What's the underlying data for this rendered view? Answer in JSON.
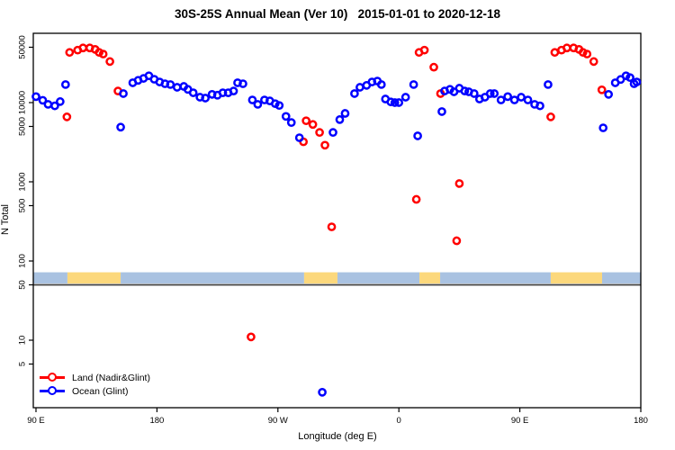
{
  "title": "30S-25S Annual Mean (Ver 10)   2015-01-01 to 2020-12-18",
  "x_axis": {
    "label": "Longitude (deg E)",
    "ticks": [
      {
        "lon": 90,
        "label": "90 E"
      },
      {
        "lon": 180,
        "label": "180"
      },
      {
        "lon": 270,
        "label": "90 W"
      },
      {
        "lon": 360,
        "label": "0"
      },
      {
        "lon": 450,
        "label": "90 E"
      },
      {
        "lon": 540,
        "label": "180"
      }
    ]
  },
  "y_axis": {
    "label": "N Total",
    "scale": "log",
    "ticks": [
      {
        "value": 5,
        "label": "5"
      },
      {
        "value": 10,
        "label": "10"
      },
      {
        "value": 50,
        "label": "50"
      },
      {
        "value": 100,
        "label": "100"
      },
      {
        "value": 500,
        "label": "500"
      },
      {
        "value": 1000,
        "label": "1000"
      },
      {
        "value": 5000,
        "label": "5000"
      },
      {
        "value": 10000,
        "label": "10000"
      },
      {
        "value": 50000,
        "label": "50000"
      }
    ]
  },
  "legend": [
    {
      "label": "Land (Nadir&Glint)",
      "color": "#ff0000"
    },
    {
      "label": "Ocean (Glint)",
      "color": "#0000ff"
    }
  ],
  "reference_line": {
    "value": 50,
    "color": "#404040"
  },
  "surface_band": {
    "description": "land/ocean mask strip along latitude band",
    "n_range": [
      52,
      72
    ],
    "ocean_color": "#a9c2e1",
    "land_color": "#fcd87c",
    "segments": [
      {
        "type": "ocean",
        "from": 88,
        "to": 113.4
      },
      {
        "type": "land",
        "from": 113.4,
        "to": 153
      },
      {
        "type": "ocean",
        "from": 153,
        "to": 289.5
      },
      {
        "type": "land",
        "from": 289.5,
        "to": 314.3
      },
      {
        "type": "ocean",
        "from": 314.3,
        "to": 375.3
      },
      {
        "type": "land",
        "from": 375.3,
        "to": 390.7
      },
      {
        "type": "ocean",
        "from": 390.7,
        "to": 473
      },
      {
        "type": "land",
        "from": 473,
        "to": 511.2
      },
      {
        "type": "ocean",
        "from": 511.2,
        "to": 540
      }
    ]
  },
  "chart_data": {
    "type": "scatter",
    "title": "30S-25S Annual Mean (Ver 10)   2015-01-01 to 2020-12-18",
    "xlabel": "Longitude (deg E)",
    "ylabel": "N Total",
    "x_range": [
      88,
      540
    ],
    "y_scale": "log",
    "y_range": [
      1.4,
      73000
    ],
    "marker": "open-circle",
    "legend_position": "bottom-left",
    "series": [
      {
        "name": "Land (Nadir&Glint)",
        "color": "#ff0000",
        "points": [
          [
            115,
            43000
          ],
          [
            121,
            46000
          ],
          [
            125,
            49000
          ],
          [
            130,
            49000
          ],
          [
            134,
            47000
          ],
          [
            137,
            43000
          ],
          [
            140,
            41000
          ],
          [
            145,
            33000
          ],
          [
            113,
            6600
          ],
          [
            151,
            14000
          ],
          [
            289,
            3200
          ],
          [
            291,
            5900
          ],
          [
            296,
            5300
          ],
          [
            301,
            4200
          ],
          [
            305,
            2900
          ],
          [
            310,
            270
          ],
          [
            250,
            11
          ],
          [
            373,
            600
          ],
          [
            375,
            43000
          ],
          [
            379,
            46000
          ],
          [
            386,
            28000
          ],
          [
            391,
            13000
          ],
          [
            403,
            180
          ],
          [
            405,
            950
          ],
          [
            473,
            6600
          ],
          [
            476,
            43000
          ],
          [
            481,
            46000
          ],
          [
            485,
            49000
          ],
          [
            490,
            49000
          ],
          [
            494,
            47000
          ],
          [
            497,
            43000
          ],
          [
            500,
            41000
          ],
          [
            505,
            33000
          ],
          [
            511,
            14500
          ]
        ]
      },
      {
        "name": "Ocean (Glint)",
        "color": "#0000ff",
        "points": [
          [
            90,
            11900
          ],
          [
            95,
            10700
          ],
          [
            99,
            9500
          ],
          [
            104,
            9100
          ],
          [
            108,
            10300
          ],
          [
            112,
            16900
          ],
          [
            153,
            4900
          ],
          [
            155,
            13000
          ],
          [
            162,
            17800
          ],
          [
            166,
            19100
          ],
          [
            170,
            20200
          ],
          [
            174,
            21800
          ],
          [
            178,
            19700
          ],
          [
            182,
            18200
          ],
          [
            186,
            17300
          ],
          [
            190,
            16900
          ],
          [
            195,
            15600
          ],
          [
            200,
            16000
          ],
          [
            203,
            14700
          ],
          [
            207,
            13300
          ],
          [
            212,
            11700
          ],
          [
            216,
            11400
          ],
          [
            221,
            12700
          ],
          [
            225,
            12400
          ],
          [
            229,
            13300
          ],
          [
            233,
            13300
          ],
          [
            237,
            14000
          ],
          [
            240,
            17800
          ],
          [
            244,
            17300
          ],
          [
            251,
            10800
          ],
          [
            255,
            9500
          ],
          [
            260,
            10800
          ],
          [
            264,
            10500
          ],
          [
            268,
            9700
          ],
          [
            271,
            9200
          ],
          [
            276,
            6700
          ],
          [
            280,
            5600
          ],
          [
            286,
            3600
          ],
          [
            303,
            2.2
          ],
          [
            311,
            4200
          ],
          [
            316,
            6100
          ],
          [
            320,
            7300
          ],
          [
            327,
            13000
          ],
          [
            331,
            15600
          ],
          [
            336,
            16500
          ],
          [
            340,
            18200
          ],
          [
            344,
            18700
          ],
          [
            347,
            16900
          ],
          [
            350,
            11100
          ],
          [
            354,
            10200
          ],
          [
            357,
            10000
          ],
          [
            360,
            10000
          ],
          [
            365,
            11700
          ],
          [
            371,
            16900
          ],
          [
            374,
            3800
          ],
          [
            392,
            7700
          ],
          [
            394,
            14000
          ],
          [
            398,
            14700
          ],
          [
            401,
            13700
          ],
          [
            405,
            15200
          ],
          [
            409,
            14000
          ],
          [
            412,
            13700
          ],
          [
            416,
            13000
          ],
          [
            420,
            11100
          ],
          [
            424,
            11700
          ],
          [
            428,
            13000
          ],
          [
            431,
            13000
          ],
          [
            436,
            10800
          ],
          [
            441,
            11900
          ],
          [
            446,
            10800
          ],
          [
            451,
            11700
          ],
          [
            456,
            10800
          ],
          [
            461,
            9500
          ],
          [
            465,
            9100
          ],
          [
            471,
            16900
          ],
          [
            512,
            4800
          ],
          [
            516,
            12700
          ],
          [
            521,
            17800
          ],
          [
            525,
            19600
          ],
          [
            529,
            21800
          ],
          [
            532,
            20700
          ],
          [
            535,
            17300
          ],
          [
            537,
            18200
          ]
        ]
      }
    ]
  }
}
